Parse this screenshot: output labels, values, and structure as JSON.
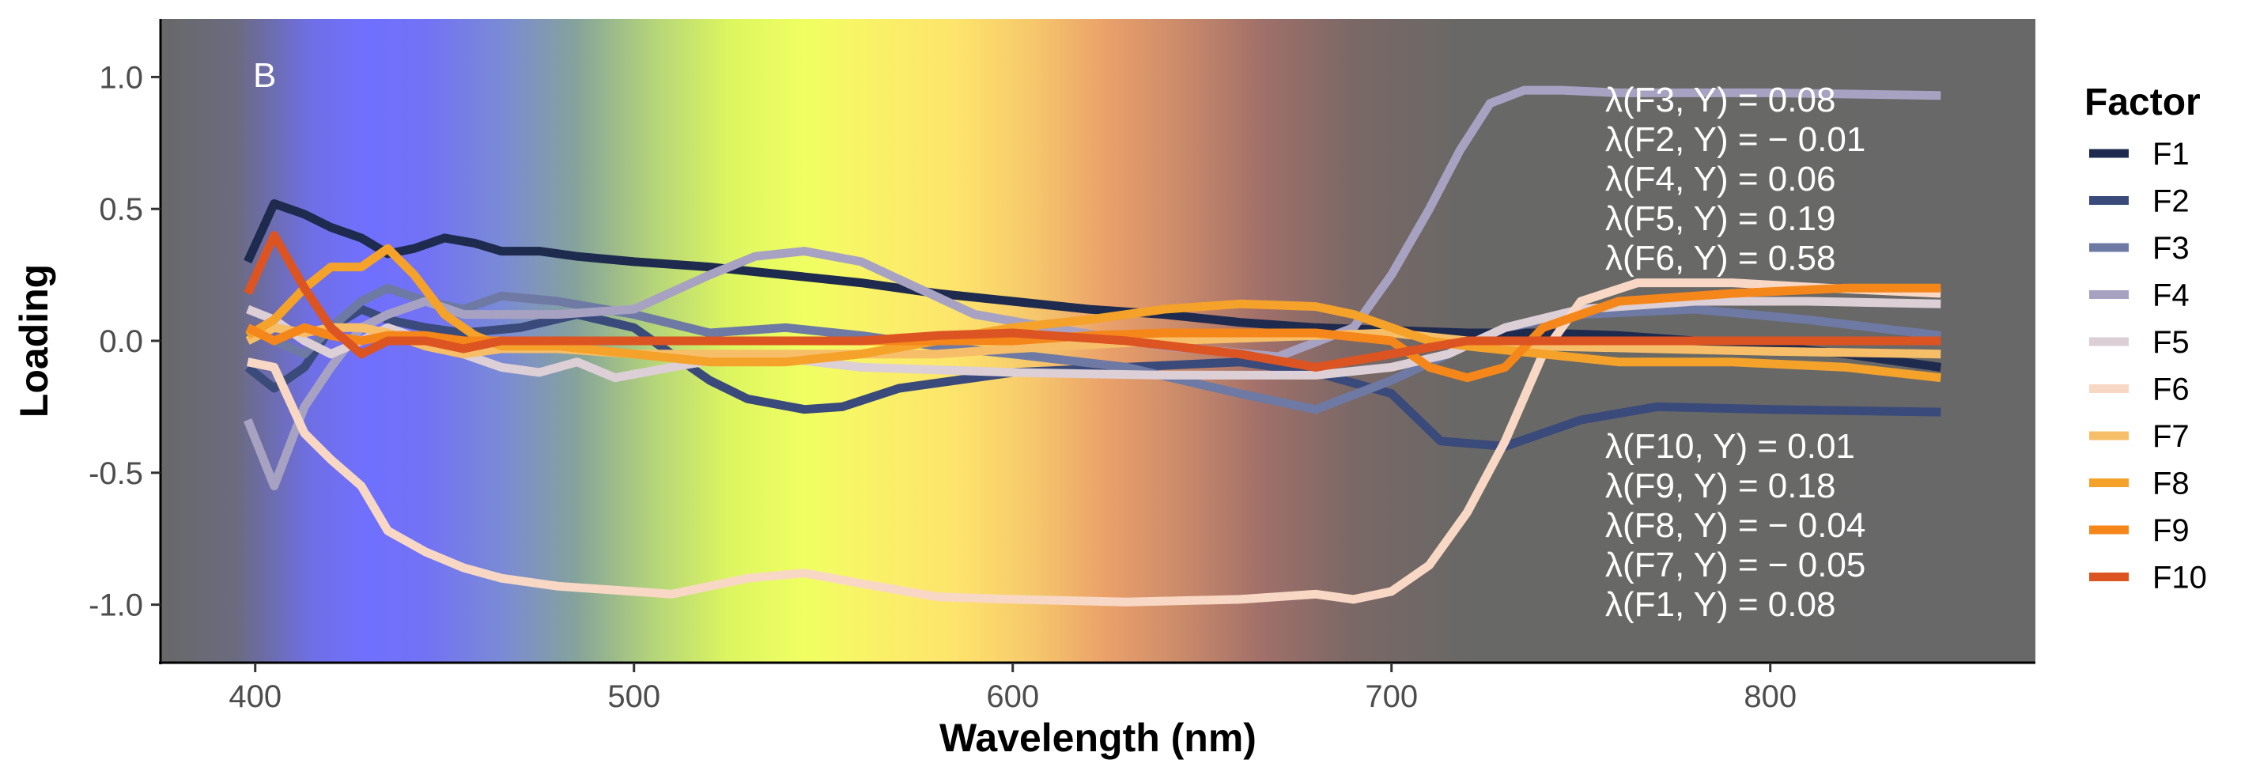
{
  "chart_data": {
    "type": "line",
    "panel_tag": "B",
    "xlabel": "Wavelength (nm)",
    "ylabel": "Loading",
    "xlim": [
      375,
      870
    ],
    "ylim": [
      -1.22,
      1.22
    ],
    "xticks": [
      400,
      500,
      600,
      700,
      800
    ],
    "xtick_labels": [
      "400",
      "500",
      "600",
      "700",
      "800"
    ],
    "yticks": [
      1.0,
      0.5,
      0.0,
      -0.5,
      -1.0
    ],
    "ytick_labels": [
      "1.0",
      "0.5",
      "0.0",
      "-0.5",
      "-1.0"
    ],
    "grid": false,
    "legend_position": "right",
    "legend_title": "Factor",
    "background_spectrum": [
      {
        "wl": 375,
        "color": "#686868"
      },
      {
        "wl": 395,
        "color": "#6b6b80"
      },
      {
        "wl": 415,
        "color": "#6f6fe6"
      },
      {
        "wl": 430,
        "color": "#7070ff"
      },
      {
        "wl": 445,
        "color": "#7272f4"
      },
      {
        "wl": 465,
        "color": "#7a8ad6"
      },
      {
        "wl": 485,
        "color": "#86a39a"
      },
      {
        "wl": 505,
        "color": "#b4d47a"
      },
      {
        "wl": 525,
        "color": "#dcf560"
      },
      {
        "wl": 545,
        "color": "#f0ff62"
      },
      {
        "wl": 565,
        "color": "#faf068"
      },
      {
        "wl": 585,
        "color": "#fde46c"
      },
      {
        "wl": 605,
        "color": "#f6c86c"
      },
      {
        "wl": 625,
        "color": "#eaa06a"
      },
      {
        "wl": 645,
        "color": "#c98a6a"
      },
      {
        "wl": 665,
        "color": "#a2706a"
      },
      {
        "wl": 690,
        "color": "#7a6866"
      },
      {
        "wl": 720,
        "color": "#686866"
      },
      {
        "wl": 870,
        "color": "#686868"
      }
    ],
    "series": [
      {
        "name": "F1",
        "color": "#1e2a4e",
        "x": [
          398,
          405,
          413,
          420,
          428,
          435,
          442,
          450,
          458,
          465,
          475,
          485,
          500,
          520,
          540,
          560,
          580,
          600,
          620,
          640,
          660,
          680,
          700,
          720,
          740,
          760,
          780,
          800,
          820,
          845
        ],
        "y": [
          0.3,
          0.52,
          0.48,
          0.43,
          0.39,
          0.33,
          0.35,
          0.39,
          0.37,
          0.34,
          0.34,
          0.32,
          0.3,
          0.28,
          0.25,
          0.22,
          0.18,
          0.15,
          0.12,
          0.1,
          0.07,
          0.05,
          0.04,
          0.03,
          0.03,
          0.02,
          0.0,
          -0.02,
          -0.05,
          -0.1
        ]
      },
      {
        "name": "F2",
        "color": "#3a4a7a",
        "x": [
          398,
          405,
          413,
          420,
          428,
          435,
          445,
          455,
          470,
          485,
          500,
          510,
          520,
          530,
          545,
          555,
          570,
          600,
          630,
          660,
          680,
          700,
          713,
          730,
          750,
          770,
          800,
          845
        ],
        "y": [
          -0.1,
          -0.18,
          -0.1,
          0.05,
          0.12,
          0.08,
          0.05,
          0.03,
          0.05,
          0.1,
          0.05,
          -0.05,
          -0.15,
          -0.22,
          -0.26,
          -0.25,
          -0.18,
          -0.12,
          -0.1,
          -0.08,
          -0.12,
          -0.2,
          -0.38,
          -0.4,
          -0.3,
          -0.25,
          -0.26,
          -0.27
        ]
      },
      {
        "name": "F3",
        "color": "#6e7aa4",
        "x": [
          398,
          405,
          413,
          420,
          428,
          435,
          445,
          455,
          465,
          480,
          500,
          520,
          540,
          560,
          580,
          600,
          630,
          660,
          680,
          700,
          715,
          730,
          750,
          780,
          810,
          845
        ],
        "y": [
          0.05,
          0.0,
          -0.05,
          0.05,
          0.15,
          0.2,
          0.15,
          0.12,
          0.17,
          0.15,
          0.1,
          0.03,
          0.05,
          0.02,
          -0.02,
          -0.05,
          -0.1,
          -0.2,
          -0.26,
          -0.15,
          -0.05,
          0.05,
          0.1,
          0.12,
          0.08,
          0.02
        ]
      },
      {
        "name": "F4",
        "color": "#a8a2c2",
        "x": [
          398,
          405,
          413,
          420,
          428,
          435,
          445,
          455,
          465,
          480,
          500,
          520,
          532,
          545,
          560,
          575,
          590,
          610,
          640,
          670,
          690,
          700,
          710,
          718,
          726,
          735,
          745,
          760,
          780,
          800,
          845
        ],
        "y": [
          -0.3,
          -0.55,
          -0.25,
          -0.1,
          0.05,
          0.1,
          0.15,
          0.1,
          0.1,
          0.1,
          0.12,
          0.25,
          0.32,
          0.34,
          0.3,
          0.2,
          0.1,
          0.05,
          -0.02,
          -0.06,
          0.05,
          0.25,
          0.5,
          0.72,
          0.9,
          0.95,
          0.95,
          0.94,
          0.94,
          0.94,
          0.93
        ]
      },
      {
        "name": "F5",
        "color": "#dccfd6",
        "x": [
          398,
          405,
          413,
          420,
          428,
          435,
          445,
          455,
          465,
          475,
          485,
          495,
          510,
          530,
          560,
          600,
          640,
          680,
          700,
          715,
          730,
          750,
          780,
          810,
          845
        ],
        "y": [
          0.12,
          0.08,
          0.0,
          -0.05,
          0.0,
          0.05,
          0.0,
          -0.05,
          -0.1,
          -0.12,
          -0.08,
          -0.14,
          -0.1,
          -0.05,
          -0.1,
          -0.12,
          -0.13,
          -0.13,
          -0.1,
          -0.05,
          0.05,
          0.12,
          0.15,
          0.15,
          0.14
        ]
      },
      {
        "name": "F6",
        "color": "#f8d8c4",
        "x": [
          398,
          405,
          413,
          420,
          428,
          435,
          445,
          455,
          465,
          480,
          500,
          510,
          530,
          545,
          560,
          580,
          600,
          630,
          660,
          680,
          690,
          700,
          710,
          720,
          730,
          740,
          750,
          765,
          790,
          815,
          845
        ],
        "y": [
          -0.08,
          -0.1,
          -0.35,
          -0.45,
          -0.55,
          -0.72,
          -0.8,
          -0.86,
          -0.9,
          -0.93,
          -0.95,
          -0.96,
          -0.9,
          -0.88,
          -0.92,
          -0.97,
          -0.98,
          -0.99,
          -0.98,
          -0.96,
          -0.98,
          -0.95,
          -0.85,
          -0.65,
          -0.38,
          -0.05,
          0.15,
          0.22,
          0.22,
          0.2,
          0.18
        ]
      },
      {
        "name": "F7",
        "color": "#f6be68",
        "x": [
          398,
          405,
          413,
          420,
          428,
          435,
          445,
          455,
          465,
          480,
          500,
          520,
          540,
          560,
          580,
          600,
          640,
          680,
          700,
          720,
          740,
          770,
          800,
          845
        ],
        "y": [
          0.0,
          0.05,
          0.03,
          0.05,
          0.05,
          0.03,
          -0.02,
          -0.05,
          -0.03,
          -0.03,
          -0.05,
          -0.05,
          -0.05,
          -0.05,
          -0.05,
          -0.03,
          0.0,
          0.02,
          0.03,
          0.0,
          -0.02,
          -0.03,
          -0.04,
          -0.05
        ]
      },
      {
        "name": "F8",
        "color": "#f4a22a",
        "x": [
          398,
          405,
          413,
          420,
          428,
          435,
          442,
          450,
          458,
          465,
          480,
          500,
          520,
          540,
          560,
          580,
          600,
          620,
          640,
          660,
          680,
          690,
          700,
          710,
          720,
          740,
          760,
          790,
          820,
          845
        ],
        "y": [
          0.02,
          0.08,
          0.2,
          0.28,
          0.28,
          0.35,
          0.25,
          0.1,
          0.02,
          -0.02,
          -0.02,
          -0.05,
          -0.08,
          -0.08,
          -0.05,
          0.0,
          0.05,
          0.08,
          0.12,
          0.14,
          0.13,
          0.1,
          0.05,
          0.0,
          -0.02,
          -0.05,
          -0.08,
          -0.08,
          -0.1,
          -0.14
        ]
      },
      {
        "name": "F9",
        "color": "#f5861a",
        "x": [
          398,
          405,
          413,
          420,
          428,
          435,
          445,
          455,
          465,
          480,
          500,
          520,
          540,
          560,
          580,
          600,
          620,
          640,
          660,
          680,
          700,
          710,
          720,
          730,
          740,
          760,
          790,
          820,
          845
        ],
        "y": [
          0.05,
          0.0,
          0.05,
          0.02,
          0.0,
          0.02,
          0.02,
          0.0,
          0.0,
          0.0,
          0.0,
          0.0,
          0.0,
          0.0,
          0.0,
          0.0,
          0.02,
          0.03,
          0.03,
          0.03,
          0.0,
          -0.1,
          -0.14,
          -0.1,
          0.05,
          0.15,
          0.18,
          0.2,
          0.2
        ]
      },
      {
        "name": "F10",
        "color": "#dc5422",
        "x": [
          398,
          405,
          413,
          420,
          428,
          435,
          445,
          455,
          465,
          480,
          500,
          520,
          540,
          560,
          580,
          600,
          630,
          660,
          680,
          700,
          720,
          740,
          770,
          800,
          845
        ],
        "y": [
          0.18,
          0.4,
          0.2,
          0.05,
          -0.05,
          0.0,
          0.0,
          -0.03,
          0.0,
          0.0,
          0.0,
          0.0,
          0.0,
          0.0,
          0.02,
          0.03,
          0.0,
          -0.05,
          -0.1,
          -0.05,
          0.0,
          0.0,
          0.0,
          0.0,
          0.0
        ]
      }
    ],
    "annotations_top": [
      "λ(F3, Y) = 0.08",
      "λ(F2, Y) = − 0.01",
      "λ(F4, Y) = 0.06",
      "λ(F5, Y) = 0.19",
      "λ(F6, Y) = 0.58"
    ],
    "annotations_bottom": [
      "λ(F10, Y) = 0.01",
      "λ(F9, Y) = 0.18",
      "λ(F8, Y) = − 0.04",
      "λ(F7, Y) = − 0.05",
      "λ(F1, Y) = 0.08"
    ]
  }
}
